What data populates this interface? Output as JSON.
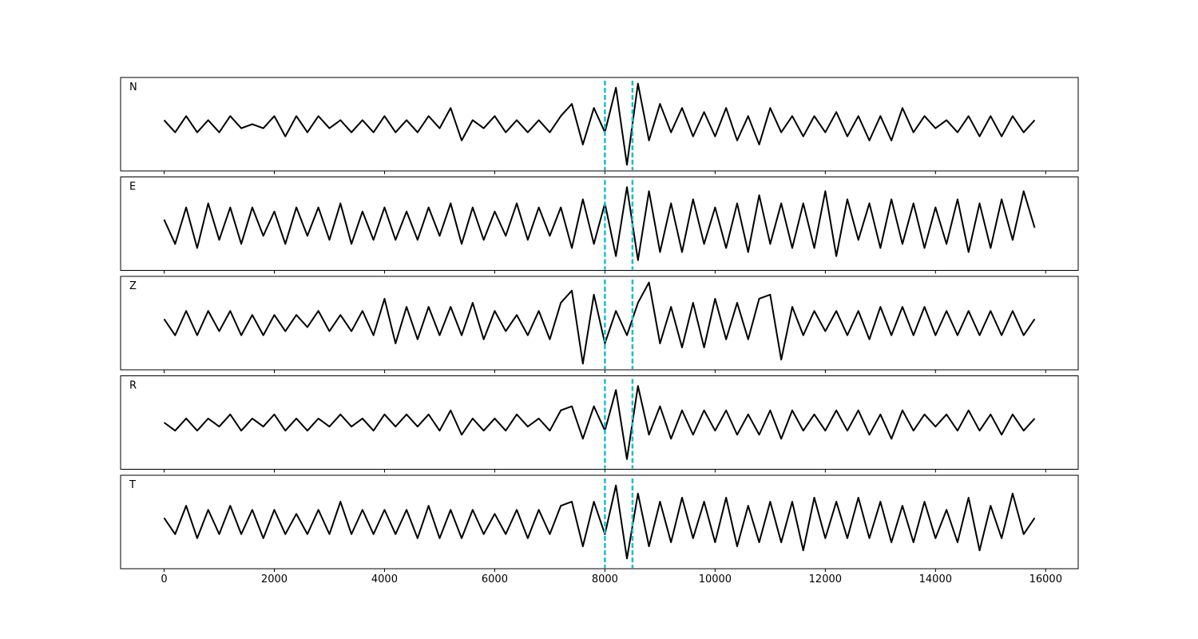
{
  "chart_data": {
    "type": "line",
    "x": [
      0,
      200,
      400,
      600,
      800,
      1000,
      1200,
      1400,
      1600,
      1800,
      2000,
      2200,
      2400,
      2600,
      2800,
      3000,
      3200,
      3400,
      3600,
      3800,
      4000,
      4200,
      4400,
      4600,
      4800,
      5000,
      5200,
      5400,
      5600,
      5800,
      6000,
      6200,
      6400,
      6600,
      6800,
      7000,
      7200,
      7400,
      7600,
      7800,
      8000,
      8200,
      8400,
      8600,
      8800,
      9000,
      9200,
      9400,
      9600,
      9800,
      10000,
      10200,
      10400,
      10600,
      10800,
      11000,
      11200,
      11400,
      11600,
      11800,
      12000,
      12200,
      12400,
      12600,
      12800,
      13000,
      13200,
      13400,
      13600,
      13800,
      14000,
      14200,
      14400,
      14600,
      14800,
      15000,
      15200,
      15400,
      15600,
      15800
    ],
    "series": [
      {
        "name": "N",
        "color": "#000000",
        "values": [
          0.1,
          -0.2,
          0.2,
          -0.2,
          0.1,
          -0.2,
          0.2,
          -0.1,
          0.0,
          -0.1,
          0.2,
          -0.3,
          0.2,
          -0.2,
          0.2,
          -0.1,
          0.1,
          -0.2,
          0.1,
          -0.2,
          0.2,
          -0.2,
          0.1,
          -0.2,
          0.2,
          -0.1,
          0.4,
          -0.4,
          0.1,
          -0.1,
          0.2,
          -0.2,
          0.1,
          -0.2,
          0.1,
          -0.2,
          0.2,
          0.5,
          -0.5,
          0.4,
          -0.2,
          0.9,
          -1.0,
          1.0,
          -0.4,
          0.5,
          -0.2,
          0.4,
          -0.3,
          0.3,
          -0.3,
          0.4,
          -0.4,
          0.2,
          -0.5,
          0.4,
          -0.2,
          0.2,
          -0.3,
          0.2,
          -0.2,
          0.3,
          -0.3,
          0.2,
          -0.4,
          0.2,
          -0.4,
          0.4,
          -0.2,
          0.2,
          -0.1,
          0.1,
          -0.2,
          0.2,
          -0.3,
          0.2,
          -0.3,
          0.2,
          -0.2,
          0.1
        ]
      },
      {
        "name": "E",
        "color": "#000000",
        "values": [
          0.1,
          -0.5,
          0.4,
          -0.6,
          0.5,
          -0.4,
          0.4,
          -0.5,
          0.4,
          -0.3,
          0.3,
          -0.5,
          0.4,
          -0.3,
          0.4,
          -0.4,
          0.5,
          -0.5,
          0.3,
          -0.4,
          0.4,
          -0.4,
          0.3,
          -0.4,
          0.4,
          -0.3,
          0.5,
          -0.5,
          0.4,
          -0.4,
          0.3,
          -0.3,
          0.5,
          -0.4,
          0.4,
          -0.3,
          0.4,
          -0.6,
          0.6,
          -0.5,
          0.5,
          -0.8,
          0.9,
          -0.9,
          0.8,
          -0.7,
          0.5,
          -0.7,
          0.6,
          -0.5,
          0.4,
          -0.6,
          0.5,
          -0.7,
          0.7,
          -0.5,
          0.5,
          -0.6,
          0.5,
          -0.6,
          0.8,
          -0.8,
          0.6,
          -0.4,
          0.5,
          -0.6,
          0.6,
          -0.5,
          0.5,
          -0.6,
          0.4,
          -0.5,
          0.6,
          -0.7,
          0.5,
          -0.6,
          0.6,
          -0.4,
          0.8,
          -0.1
        ]
      },
      {
        "name": "Z",
        "color": "#000000",
        "values": [
          0.1,
          -0.3,
          0.3,
          -0.3,
          0.3,
          -0.2,
          0.3,
          -0.3,
          0.2,
          -0.3,
          0.2,
          -0.2,
          0.2,
          -0.1,
          0.3,
          -0.2,
          0.2,
          -0.2,
          0.3,
          -0.3,
          0.6,
          -0.5,
          0.4,
          -0.4,
          0.4,
          -0.3,
          0.4,
          -0.3,
          0.5,
          -0.4,
          0.3,
          -0.2,
          0.2,
          -0.3,
          0.3,
          -0.4,
          0.5,
          0.8,
          -1.0,
          0.7,
          -0.5,
          0.3,
          -0.3,
          0.5,
          1.0,
          -0.5,
          0.4,
          -0.6,
          0.5,
          -0.6,
          0.6,
          -0.4,
          0.5,
          -0.4,
          0.6,
          0.7,
          -0.9,
          0.4,
          -0.3,
          0.3,
          -0.2,
          0.3,
          -0.3,
          0.3,
          -0.4,
          0.4,
          -0.3,
          0.4,
          -0.3,
          0.4,
          -0.3,
          0.3,
          -0.3,
          0.3,
          -0.3,
          0.3,
          -0.3,
          0.3,
          -0.3,
          0.1
        ]
      },
      {
        "name": "R",
        "color": "#000000",
        "values": [
          0.0,
          -0.2,
          0.1,
          -0.2,
          0.1,
          -0.1,
          0.2,
          -0.2,
          0.1,
          -0.1,
          0.2,
          -0.2,
          0.1,
          -0.2,
          0.1,
          -0.1,
          0.2,
          -0.1,
          0.1,
          -0.2,
          0.2,
          -0.1,
          0.2,
          -0.1,
          0.2,
          -0.2,
          0.3,
          -0.3,
          0.1,
          -0.2,
          0.1,
          -0.2,
          0.2,
          -0.1,
          0.1,
          -0.2,
          0.3,
          0.4,
          -0.4,
          0.4,
          -0.2,
          0.8,
          -0.9,
          0.9,
          -0.3,
          0.4,
          -0.4,
          0.3,
          -0.3,
          0.3,
          -0.2,
          0.3,
          -0.3,
          0.2,
          -0.3,
          0.3,
          -0.4,
          0.3,
          -0.2,
          0.2,
          -0.2,
          0.3,
          -0.2,
          0.3,
          -0.3,
          0.2,
          -0.4,
          0.3,
          -0.2,
          0.2,
          -0.1,
          0.2,
          -0.2,
          0.3,
          -0.2,
          0.2,
          -0.3,
          0.2,
          -0.2,
          0.1
        ]
      },
      {
        "name": "T",
        "color": "#000000",
        "values": [
          0.1,
          -0.3,
          0.4,
          -0.4,
          0.3,
          -0.3,
          0.4,
          -0.3,
          0.3,
          -0.4,
          0.3,
          -0.3,
          0.2,
          -0.3,
          0.3,
          -0.3,
          0.5,
          -0.3,
          0.3,
          -0.3,
          0.3,
          -0.3,
          0.3,
          -0.4,
          0.4,
          -0.4,
          0.3,
          -0.4,
          0.3,
          -0.3,
          0.2,
          -0.3,
          0.3,
          -0.4,
          0.3,
          -0.3,
          0.4,
          0.5,
          -0.6,
          0.5,
          -0.3,
          0.9,
          -0.9,
          0.7,
          -0.6,
          0.5,
          -0.5,
          0.6,
          -0.4,
          0.5,
          -0.5,
          0.6,
          -0.6,
          0.4,
          -0.5,
          0.5,
          -0.5,
          0.5,
          -0.7,
          0.6,
          -0.4,
          0.5,
          -0.4,
          0.6,
          -0.4,
          0.5,
          -0.5,
          0.4,
          -0.5,
          0.5,
          -0.4,
          0.3,
          -0.5,
          0.6,
          -0.7,
          0.4,
          -0.4,
          0.7,
          -0.3,
          0.1
        ]
      }
    ],
    "xlim": [
      -790,
      16590
    ],
    "xticks": [
      0,
      2000,
      4000,
      6000,
      8000,
      10000,
      12000,
      14000,
      16000
    ],
    "ylim": [
      -1.15,
      1.15
    ],
    "vlines": [
      8000,
      8500
    ],
    "vline_color": "#17becf"
  }
}
